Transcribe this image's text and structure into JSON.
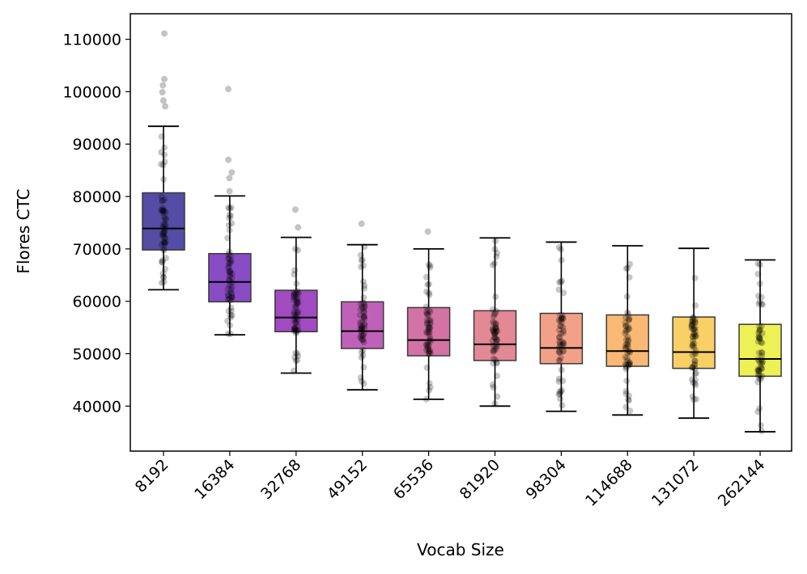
{
  "chart_data": {
    "type": "box",
    "title": "",
    "xlabel": "Vocab Size",
    "ylabel": "Flores CTC",
    "ylim": [
      31500,
      115000
    ],
    "yticks": [
      40000,
      50000,
      60000,
      70000,
      80000,
      90000,
      100000,
      110000
    ],
    "categories": [
      "8192",
      "16384",
      "32768",
      "49152",
      "65536",
      "81920",
      "98304",
      "114688",
      "131072",
      "262144"
    ],
    "colors": [
      "#0d0887",
      "#5302a3",
      "#8b0aa5",
      "#b83289",
      "#db5c68",
      "#f48849",
      "#febd2a",
      "#f0f921"
    ],
    "box_colors": [
      "#2a1f8f",
      "#6a1fb5",
      "#8a1eb0",
      "#b03aa8",
      "#c8508f",
      "#dc6a7a",
      "#ef8a6a",
      "#f8a851",
      "#f6c440",
      "#e8ee2a"
    ],
    "boxes": [
      {
        "label": "8192",
        "whisker_low": 62200,
        "q1": 69800,
        "median": 73900,
        "q3": 80700,
        "whisker_high": 93400,
        "outliers": [
          111100,
          102400,
          101200,
          99900,
          98300,
          97200
        ]
      },
      {
        "label": "16384",
        "whisker_low": 53600,
        "q1": 59900,
        "median": 63700,
        "q3": 69100,
        "whisker_high": 80100,
        "outliers": [
          100500,
          87000,
          84600,
          83500,
          81000
        ]
      },
      {
        "label": "32768",
        "whisker_low": 46300,
        "q1": 54200,
        "median": 56900,
        "q3": 62100,
        "whisker_high": 72200,
        "outliers": [
          77500,
          74100
        ]
      },
      {
        "label": "49152",
        "whisker_low": 43100,
        "q1": 51000,
        "median": 54300,
        "q3": 59900,
        "whisker_high": 70800,
        "outliers": [
          74800
        ]
      },
      {
        "label": "65536",
        "whisker_low": 41300,
        "q1": 49600,
        "median": 52600,
        "q3": 58800,
        "whisker_high": 70000,
        "outliers": [
          73300
        ]
      },
      {
        "label": "81920",
        "whisker_low": 40000,
        "q1": 48700,
        "median": 51800,
        "q3": 58200,
        "whisker_high": 72100,
        "outliers": []
      },
      {
        "label": "98304",
        "whisker_low": 39000,
        "q1": 48100,
        "median": 51100,
        "q3": 57700,
        "whisker_high": 71300,
        "outliers": []
      },
      {
        "label": "114688",
        "whisker_low": 38300,
        "q1": 47600,
        "median": 50500,
        "q3": 57400,
        "whisker_high": 70600,
        "outliers": []
      },
      {
        "label": "131072",
        "whisker_low": 37700,
        "q1": 47200,
        "median": 50300,
        "q3": 57000,
        "whisker_high": 70100,
        "outliers": []
      },
      {
        "label": "262144",
        "whisker_low": 35100,
        "q1": 45700,
        "median": 49000,
        "q3": 55600,
        "whisker_high": 67900,
        "outliers": []
      }
    ]
  }
}
